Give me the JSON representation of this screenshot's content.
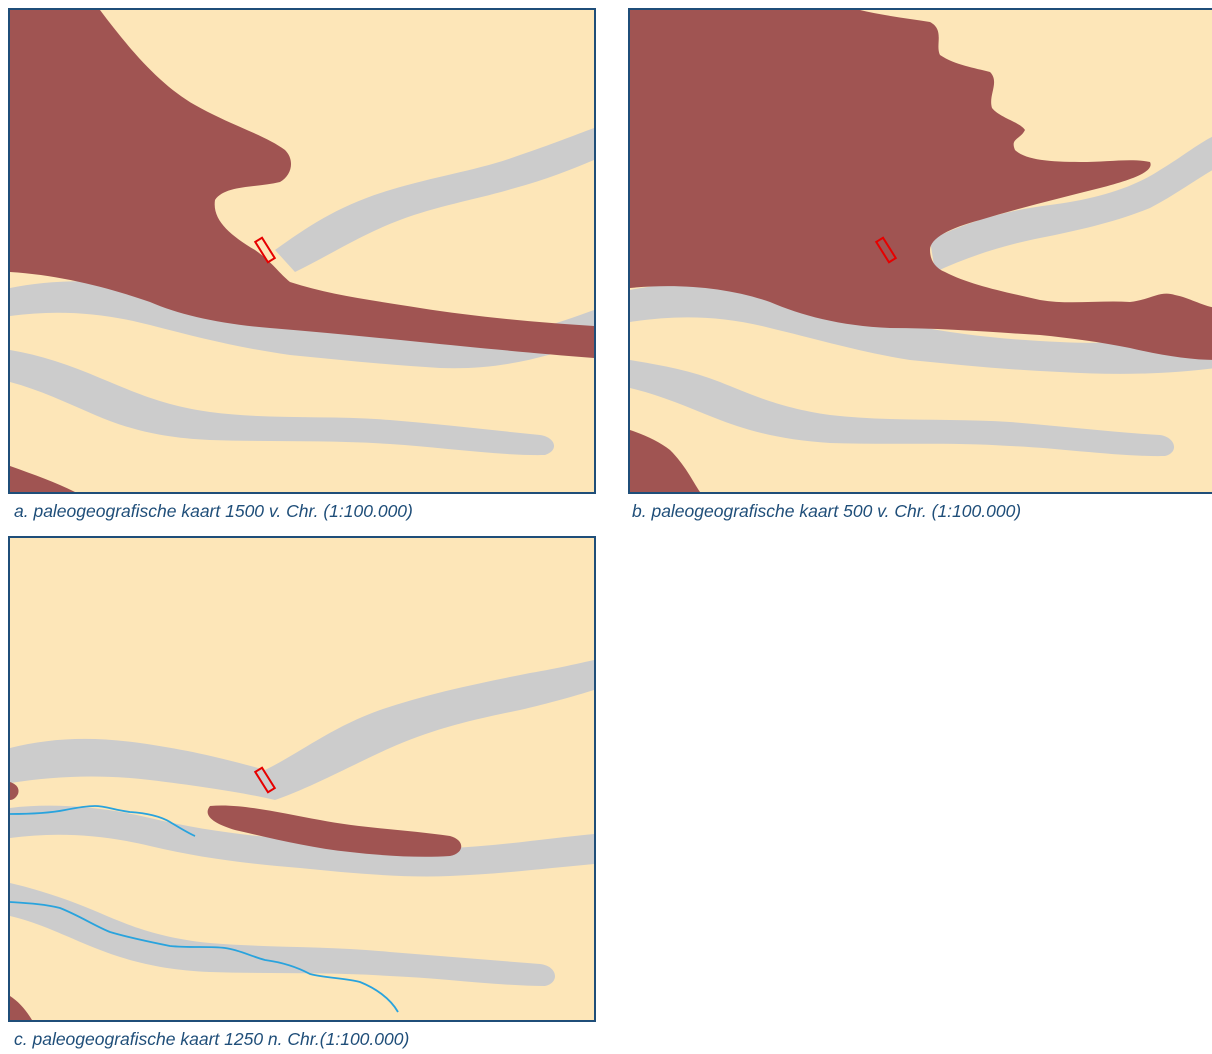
{
  "colors": {
    "land": "#fde6b8",
    "peat": "#a05452",
    "channel": "#cccccc",
    "river": "#29a3dd",
    "site_outline": "#e60000",
    "frame": "#1f4e79",
    "caption": "#1f4e79"
  },
  "panels": [
    {
      "id": "a",
      "caption": "a. paleogeografische kaart 1500 v. Chr. (1:100.000)"
    },
    {
      "id": "b",
      "caption": "b. paleogeografische kaart 500 v. Chr. (1:100.000)"
    },
    {
      "id": "c",
      "caption": "c. paleogeografische kaart 1250 n. Chr.(1:100.000)"
    }
  ]
}
